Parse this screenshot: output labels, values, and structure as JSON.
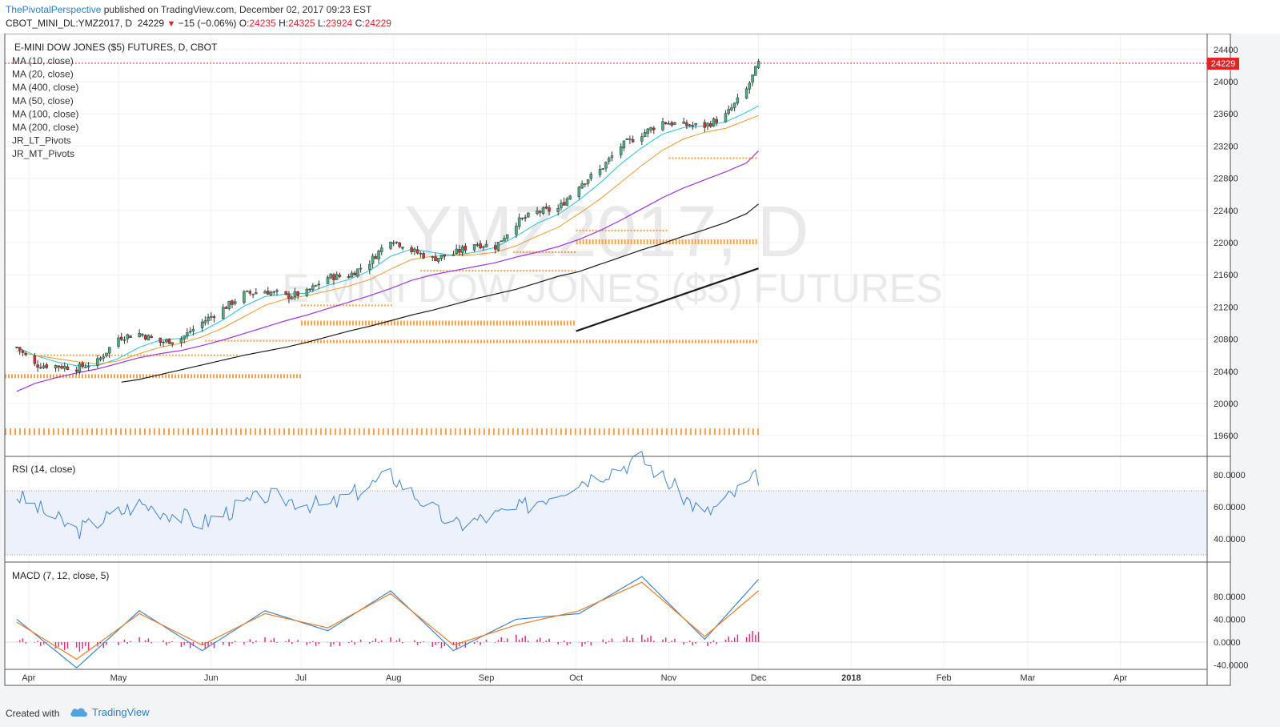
{
  "header": {
    "publisher": "ThePivotalPerspective",
    "published_text": " published on TradingView.com, December 02, 2017 09:23 EST",
    "symbol": "CBOT_MINI_DL:YMZ2017, D",
    "last": "24229",
    "change": "−15 (−0.06%)",
    "o_label": "O:",
    "o_val": "24235",
    "h_label": "H:",
    "h_val": "24325",
    "l_label": "L:",
    "l_val": "23924",
    "c_label": "C:",
    "c_val": "24229"
  },
  "main_pane": {
    "title": "E-MINI DOW JONES ($5) FUTURES, D, CBOT",
    "watermark_symbol": "YMZ2017, D",
    "watermark_name": "E-MINI DOW JONES ($5) FUTURES",
    "legend": [
      "MA (10, close)",
      "MA (20, close)",
      "MA (400, close)",
      "MA (50, close)",
      "MA (100, close)",
      "MA (200, close)",
      "JR_LT_Pivots",
      "JR_MT_Pivots"
    ],
    "price_ticks": [
      "24400",
      "24000",
      "23600",
      "23200",
      "22800",
      "22400",
      "22000",
      "21600",
      "21200",
      "20800",
      "20400",
      "20000",
      "19600"
    ],
    "last_price_label": "24229"
  },
  "rsi_pane": {
    "title": "RSI (14, close)",
    "ticks": [
      "80.0000",
      "60.0000",
      "40.0000"
    ]
  },
  "macd_pane": {
    "title": "MACD (7, 12, close, 5)",
    "ticks": [
      "80.0000",
      "40.0000",
      "0.0000",
      "-40.0000"
    ]
  },
  "time_axis": [
    "Apr",
    "May",
    "Jun",
    "Jul",
    "Aug",
    "Sep",
    "Oct",
    "Nov",
    "Dec",
    "2018",
    "Feb",
    "Mar",
    "Apr"
  ],
  "footer": {
    "created_with": "Created with",
    "brand": "TradingView"
  },
  "colors": {
    "up_candle": "#4caf82",
    "down_candle": "#d0352e",
    "ma10": "#22c4dc",
    "ma20": "#f5962a",
    "ma50": "#9b35e8",
    "ma100": "#1a1a1a",
    "ma200": "#1a1a1a",
    "pivots": "#f5a04a",
    "rsi": "#3d85d6",
    "macd": "#3d85d6",
    "signal": "#f07a1e",
    "hist": "#e0307a"
  },
  "chart_data": [
    {
      "type": "candlestick",
      "title": "E-MINI DOW JONES ($5) FUTURES, D, CBOT",
      "ylim": [
        19400,
        24500
      ],
      "x": [
        "2017-03-28",
        "2017-04-03",
        "2017-04-10",
        "2017-04-17",
        "2017-04-24",
        "2017-05-01",
        "2017-05-08",
        "2017-05-15",
        "2017-05-22",
        "2017-05-29",
        "2017-06-05",
        "2017-06-12",
        "2017-06-19",
        "2017-06-26",
        "2017-07-03",
        "2017-07-10",
        "2017-07-17",
        "2017-07-24",
        "2017-07-31",
        "2017-08-07",
        "2017-08-14",
        "2017-08-21",
        "2017-08-28",
        "2017-09-04",
        "2017-09-11",
        "2017-09-18",
        "2017-09-25",
        "2017-10-02",
        "2017-10-09",
        "2017-10-16",
        "2017-10-23",
        "2017-10-30",
        "2017-11-06",
        "2017-11-13",
        "2017-11-20",
        "2017-11-27",
        "2017-12-01"
      ],
      "close": [
        20700,
        20480,
        20470,
        20440,
        20520,
        20820,
        20870,
        20760,
        20810,
        21010,
        21180,
        21360,
        21400,
        21330,
        21380,
        21570,
        21590,
        21760,
        22050,
        21900,
        21800,
        21860,
        21990,
        21950,
        22250,
        22380,
        22420,
        22720,
        22900,
        23200,
        23350,
        23500,
        23460,
        23450,
        23580,
        23900,
        24229
      ],
      "series": [
        {
          "name": "MA (10, close)",
          "values": [
            20700,
            20600,
            20520,
            20470,
            20470,
            20560,
            20700,
            20790,
            20810,
            20900,
            21040,
            21210,
            21330,
            21360,
            21370,
            21470,
            21540,
            21650,
            21830,
            21920,
            21880,
            21840,
            21880,
            21940,
            22080,
            22240,
            22350,
            22530,
            22740,
            22980,
            23180,
            23350,
            23430,
            23450,
            23500,
            23620,
            23700
          ]
        },
        {
          "name": "MA (20, close)",
          "values": [
            20650,
            20600,
            20560,
            20520,
            20490,
            20530,
            20620,
            20700,
            20750,
            20830,
            20940,
            21080,
            21220,
            21300,
            21340,
            21400,
            21460,
            21540,
            21670,
            21790,
            21830,
            21840,
            21850,
            21880,
            21960,
            22080,
            22190,
            22360,
            22540,
            22750,
            22960,
            23150,
            23290,
            23370,
            23420,
            23520,
            23580
          ]
        },
        {
          "name": "MA (50, close)",
          "values": [
            20150,
            20250,
            20320,
            20380,
            20430,
            20500,
            20570,
            20620,
            20660,
            20720,
            20790,
            20870,
            20950,
            21030,
            21100,
            21180,
            21260,
            21340,
            21430,
            21530,
            21600,
            21650,
            21700,
            21750,
            21820,
            21880,
            21950,
            22040,
            22150,
            22280,
            22420,
            22560,
            22680,
            22780,
            22880,
            22990,
            23140
          ]
        },
        {
          "name": "MA (100, close)",
          "values": [
            null,
            null,
            null,
            null,
            null,
            20260,
            20300,
            20360,
            20420,
            20480,
            20540,
            20600,
            20650,
            20700,
            20760,
            20830,
            20900,
            20960,
            21030,
            21100,
            21160,
            21230,
            21300,
            21360,
            21420,
            21500,
            21580,
            21640,
            21730,
            21820,
            21910,
            21990,
            22080,
            22160,
            22250,
            22360,
            22480
          ]
        }
      ]
    },
    {
      "type": "line",
      "title": "RSI (14, close)",
      "ylim": [
        27,
        97
      ],
      "x": [
        "2017-03-28",
        "2017-04-17",
        "2017-05-08",
        "2017-05-29",
        "2017-06-19",
        "2017-07-10",
        "2017-07-31",
        "2017-08-21",
        "2017-09-11",
        "2017-10-02",
        "2017-10-23",
        "2017-11-13",
        "2017-12-01"
      ],
      "series": [
        {
          "name": "RSI (14, close)",
          "values": [
            67,
            45,
            62,
            50,
            67,
            60,
            80,
            48,
            58,
            76,
            90,
            55,
            79
          ]
        }
      ]
    },
    {
      "type": "line",
      "title": "MACD (7, 12, close, 5)",
      "ylim": [
        -65,
        115
      ],
      "x": [
        "2017-03-28",
        "2017-04-17",
        "2017-05-08",
        "2017-05-29",
        "2017-06-19",
        "2017-07-10",
        "2017-07-31",
        "2017-08-21",
        "2017-09-11",
        "2017-10-02",
        "2017-10-23",
        "2017-11-13",
        "2017-12-01"
      ],
      "series": [
        {
          "name": "MACD",
          "values": [
            40,
            -45,
            55,
            -15,
            55,
            20,
            90,
            -15,
            40,
            50,
            115,
            5,
            110
          ]
        },
        {
          "name": "Signal",
          "values": [
            35,
            -30,
            50,
            -5,
            50,
            25,
            85,
            -5,
            30,
            55,
            105,
            10,
            90
          ]
        }
      ]
    }
  ]
}
